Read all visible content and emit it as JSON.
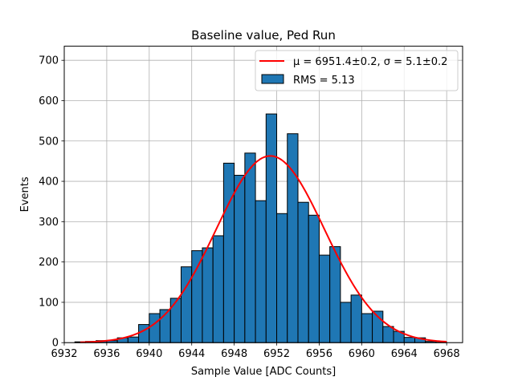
{
  "chart_data": {
    "type": "bar",
    "title": "Baseline value, Ped Run",
    "xlabel": "Sample Value [ADC Counts]",
    "ylabel": "Events",
    "xlim": [
      6932,
      6969.5
    ],
    "ylim": [
      0,
      735
    ],
    "grid": true,
    "legend_position": "top-right",
    "x_ticks": [
      6932,
      6936,
      6940,
      6944,
      6948,
      6952,
      6956,
      6960,
      6964,
      6968
    ],
    "y_ticks": [
      0,
      100,
      200,
      300,
      400,
      500,
      600,
      700
    ],
    "bin_width": 1,
    "bins": [
      {
        "x": 6933.5,
        "value": 2
      },
      {
        "x": 6934.5,
        "value": 3
      },
      {
        "x": 6935.5,
        "value": 5
      },
      {
        "x": 6936.5,
        "value": 5
      },
      {
        "x": 6937.5,
        "value": 12
      },
      {
        "x": 6938.5,
        "value": 14
      },
      {
        "x": 6939.5,
        "value": 45
      },
      {
        "x": 6940.5,
        "value": 72
      },
      {
        "x": 6941.5,
        "value": 82
      },
      {
        "x": 6942.5,
        "value": 110
      },
      {
        "x": 6943.5,
        "value": 188
      },
      {
        "x": 6944.5,
        "value": 228
      },
      {
        "x": 6945.5,
        "value": 235
      },
      {
        "x": 6946.5,
        "value": 265
      },
      {
        "x": 6947.5,
        "value": 445
      },
      {
        "x": 6948.5,
        "value": 415
      },
      {
        "x": 6949.5,
        "value": 470
      },
      {
        "x": 6950.5,
        "value": 352
      },
      {
        "x": 6951.5,
        "value": 567
      },
      {
        "x": 6952.5,
        "value": 320
      },
      {
        "x": 6953.5,
        "value": 518
      },
      {
        "x": 6954.5,
        "value": 348
      },
      {
        "x": 6955.5,
        "value": 316
      },
      {
        "x": 6956.5,
        "value": 217
      },
      {
        "x": 6957.5,
        "value": 238
      },
      {
        "x": 6958.5,
        "value": 100
      },
      {
        "x": 6959.5,
        "value": 118
      },
      {
        "x": 6960.5,
        "value": 72
      },
      {
        "x": 6961.5,
        "value": 78
      },
      {
        "x": 6962.5,
        "value": 40
      },
      {
        "x": 6963.5,
        "value": 28
      },
      {
        "x": 6964.5,
        "value": 13
      },
      {
        "x": 6965.5,
        "value": 12
      },
      {
        "x": 6966.5,
        "value": 3
      },
      {
        "x": 6967.5,
        "value": 1
      }
    ],
    "fit": {
      "label": "μ = 6951.4±0.2, σ = 5.1±0.2",
      "mu": 6951.4,
      "sigma": 5.1,
      "amplitude": 463,
      "x_range": [
        6933.5,
        6968
      ],
      "color": "#ff0000"
    },
    "histogram": {
      "label": "RMS = 5.13",
      "color": "#1f77b4",
      "edge_color": "#000000"
    }
  }
}
